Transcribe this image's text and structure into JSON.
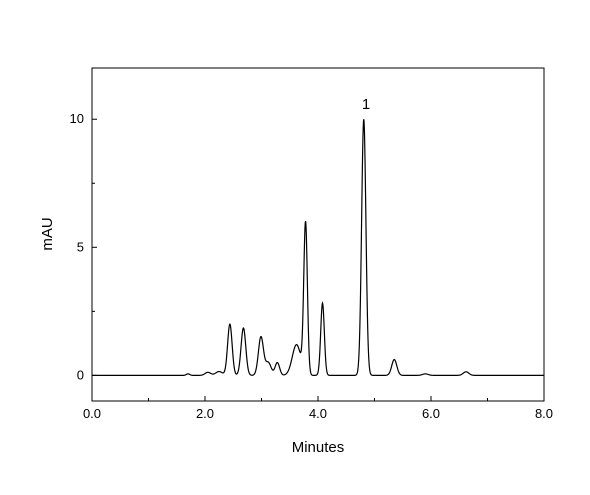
{
  "chart_data": {
    "type": "line",
    "title": "",
    "xlabel": "Minutes",
    "ylabel": "mAU",
    "xlim": [
      0.0,
      8.0
    ],
    "ylim": [
      -1.0,
      12.0
    ],
    "x_ticks": [
      0.0,
      2.0,
      4.0,
      6.0,
      8.0
    ],
    "x_tick_labels": [
      "0.0",
      "2.0",
      "4.0",
      "6.0",
      "8.0"
    ],
    "y_ticks": [
      0,
      5,
      10
    ],
    "y_tick_labels": [
      "0",
      "5",
      "10"
    ],
    "grid": false,
    "legend": "none",
    "line_color": "#000000",
    "baseline": 0.0,
    "peaks": [
      {
        "x": 1.7,
        "height": 0.06,
        "width": 0.03
      },
      {
        "x": 2.05,
        "height": 0.12,
        "width": 0.05
      },
      {
        "x": 2.25,
        "height": 0.15,
        "width": 0.06
      },
      {
        "x": 2.44,
        "height": 2.0,
        "width": 0.04
      },
      {
        "x": 2.68,
        "height": 1.85,
        "width": 0.042
      },
      {
        "x": 2.99,
        "height": 1.5,
        "width": 0.045
      },
      {
        "x": 3.12,
        "height": 0.5,
        "width": 0.05
      },
      {
        "x": 3.28,
        "height": 0.5,
        "width": 0.04
      },
      {
        "x": 3.62,
        "height": 1.2,
        "width": 0.075
      },
      {
        "x": 3.78,
        "height": 5.9,
        "width": 0.032
      },
      {
        "x": 4.08,
        "height": 2.82,
        "width": 0.032
      },
      {
        "x": 4.81,
        "height": 10.0,
        "width": 0.038
      },
      {
        "x": 5.35,
        "height": 0.62,
        "width": 0.045
      },
      {
        "x": 5.9,
        "height": 0.06,
        "width": 0.05
      },
      {
        "x": 6.62,
        "height": 0.14,
        "width": 0.05
      }
    ],
    "annotations": [
      {
        "text": "1",
        "x": 4.85,
        "y": 10.4
      }
    ]
  }
}
